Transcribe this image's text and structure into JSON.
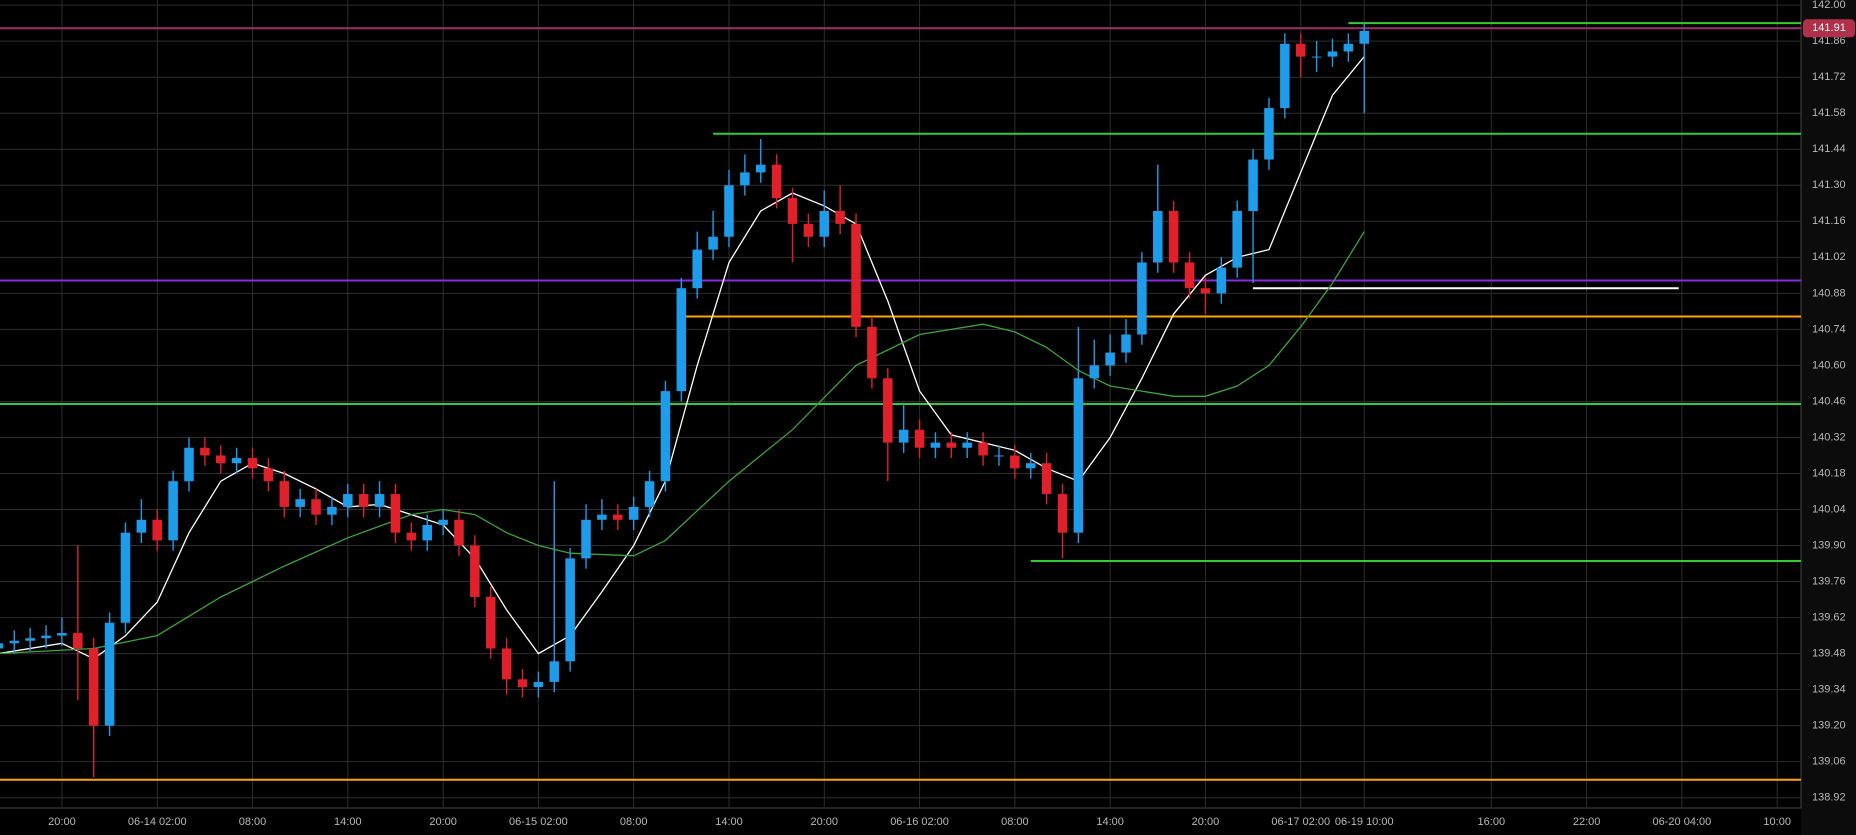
{
  "chart_data": {
    "type": "candlestick",
    "x": [
      -4,
      -3,
      -2,
      -1,
      0,
      1,
      2,
      3,
      4,
      5,
      6,
      7,
      8,
      9,
      10,
      11,
      12,
      13,
      14,
      15,
      16,
      17,
      18,
      19,
      20,
      21,
      22,
      23,
      24,
      25,
      26,
      27,
      28,
      29,
      30,
      31,
      32,
      33,
      34,
      35,
      36,
      37,
      38,
      39,
      40,
      41,
      42,
      43,
      44,
      45,
      46,
      47,
      48,
      49,
      50,
      51,
      52,
      53,
      54,
      55,
      56,
      57,
      58,
      59,
      60,
      61,
      62,
      63,
      64,
      65,
      66,
      67,
      68,
      69,
      70,
      71,
      72,
      73,
      74,
      75,
      76,
      77,
      78,
      79,
      80,
      81,
      82
    ],
    "open": [
      139.5,
      139.52,
      139.53,
      139.54,
      139.55,
      139.56,
      139.5,
      139.2,
      139.6,
      139.95,
      140.0,
      139.92,
      140.15,
      140.28,
      140.25,
      140.22,
      140.24,
      140.2,
      140.15,
      140.05,
      140.08,
      140.02,
      140.05,
      140.1,
      140.05,
      140.1,
      139.95,
      139.92,
      139.98,
      140.0,
      139.9,
      139.7,
      139.5,
      139.38,
      139.35,
      139.37,
      139.45,
      139.85,
      140.0,
      140.02,
      140.0,
      140.05,
      140.15,
      140.5,
      140.9,
      141.05,
      141.1,
      141.3,
      141.35,
      141.38,
      141.25,
      141.15,
      141.1,
      141.2,
      141.15,
      140.75,
      140.55,
      140.3,
      140.35,
      140.28,
      140.3,
      140.28,
      140.3,
      140.25,
      140.25,
      140.2,
      140.22,
      140.1,
      139.95,
      140.55,
      140.6,
      140.65,
      140.72,
      141.0,
      141.2,
      141.0,
      140.9,
      140.88,
      140.98,
      141.2,
      141.4,
      141.6,
      141.85,
      141.8,
      141.8,
      141.82,
      141.85
    ],
    "high": [
      139.56,
      139.57,
      139.58,
      139.59,
      139.62,
      139.9,
      139.54,
      139.64,
      139.99,
      140.08,
      140.04,
      140.19,
      140.32,
      140.32,
      140.29,
      140.28,
      140.28,
      140.24,
      140.19,
      140.12,
      140.12,
      140.09,
      140.14,
      140.14,
      140.15,
      140.14,
      139.99,
      140.02,
      140.04,
      140.04,
      139.94,
      139.74,
      139.54,
      139.42,
      139.41,
      140.15,
      139.89,
      140.06,
      140.08,
      140.06,
      140.09,
      140.19,
      140.54,
      140.94,
      141.12,
      141.2,
      141.36,
      141.42,
      141.48,
      141.42,
      141.29,
      141.19,
      141.28,
      141.3,
      141.19,
      140.79,
      140.59,
      140.45,
      140.39,
      140.34,
      140.34,
      140.34,
      140.34,
      140.29,
      140.29,
      140.26,
      140.26,
      140.14,
      140.75,
      140.7,
      140.72,
      140.78,
      141.04,
      141.38,
      141.24,
      141.04,
      140.94,
      141.02,
      141.24,
      141.44,
      141.64,
      141.89,
      141.89,
      141.86,
      141.87,
      141.89,
      141.93
    ],
    "low": [
      139.46,
      139.48,
      139.49,
      139.5,
      139.51,
      139.3,
      139.0,
      139.16,
      139.56,
      139.91,
      139.88,
      139.88,
      140.11,
      140.21,
      140.18,
      140.18,
      140.16,
      140.11,
      140.01,
      140.01,
      139.98,
      139.98,
      140.01,
      140.01,
      140.01,
      139.91,
      139.88,
      139.88,
      139.94,
      139.86,
      139.66,
      139.46,
      139.32,
      139.31,
      139.31,
      139.33,
      139.41,
      139.81,
      139.96,
      139.96,
      139.96,
      140.01,
      140.11,
      140.46,
      140.86,
      141.01,
      141.06,
      141.26,
      141.31,
      141.21,
      141.0,
      141.06,
      141.06,
      141.11,
      140.71,
      140.51,
      140.15,
      140.26,
      140.24,
      140.24,
      140.24,
      140.24,
      140.21,
      140.21,
      140.16,
      140.16,
      140.06,
      139.85,
      139.91,
      140.51,
      140.56,
      140.61,
      140.68,
      140.96,
      140.96,
      140.86,
      140.8,
      140.84,
      140.94,
      140.92,
      141.36,
      141.56,
      141.72,
      141.74,
      141.76,
      141.78,
      141.58
    ],
    "close": [
      139.52,
      139.53,
      139.54,
      139.55,
      139.56,
      139.5,
      139.2,
      139.6,
      139.95,
      140.0,
      139.92,
      140.15,
      140.28,
      140.25,
      140.22,
      140.24,
      140.2,
      140.15,
      140.05,
      140.08,
      140.02,
      140.05,
      140.1,
      140.05,
      140.1,
      139.95,
      139.92,
      139.98,
      140.0,
      139.9,
      139.7,
      139.5,
      139.38,
      139.35,
      139.37,
      139.45,
      139.85,
      140.0,
      140.02,
      140.0,
      140.05,
      140.15,
      140.5,
      140.9,
      141.05,
      141.1,
      141.3,
      141.35,
      141.38,
      141.25,
      141.15,
      141.1,
      141.2,
      141.15,
      140.75,
      140.55,
      140.3,
      140.35,
      140.28,
      140.3,
      140.28,
      140.3,
      140.25,
      140.25,
      140.2,
      140.22,
      140.1,
      139.95,
      140.55,
      140.6,
      140.65,
      140.72,
      141.0,
      141.2,
      141.0,
      140.9,
      140.88,
      140.98,
      141.2,
      141.4,
      141.6,
      141.85,
      141.8,
      141.8,
      141.82,
      141.85,
      141.9
    ],
    "up_color": "#1e9be9",
    "down_color": "#e0202a",
    "series": [
      {
        "color": "#ffffff",
        "x": [
          -4,
          0,
          2,
          4,
          6,
          8,
          10,
          12,
          14,
          16,
          18,
          20,
          22,
          24,
          26,
          28,
          30,
          32,
          34,
          36,
          38,
          40,
          42,
          44,
          46,
          48,
          50,
          52,
          54,
          56,
          58,
          60,
          62,
          64,
          66,
          68,
          70,
          72,
          74,
          76,
          78,
          80,
          82
        ],
        "values": [
          139.48,
          139.52,
          139.46,
          139.55,
          139.68,
          139.95,
          140.15,
          140.22,
          140.18,
          140.12,
          140.05,
          140.06,
          140.02,
          139.98,
          139.85,
          139.65,
          139.48,
          139.55,
          139.72,
          139.9,
          140.15,
          140.6,
          141.0,
          141.2,
          141.27,
          141.22,
          141.15,
          140.85,
          140.5,
          140.33,
          140.3,
          140.27,
          140.2,
          140.15,
          140.32,
          140.55,
          140.8,
          140.95,
          141.02,
          141.05,
          141.35,
          141.65,
          141.8
        ]
      },
      {
        "color": "#3aa53a",
        "x": [
          -4,
          2,
          6,
          10,
          14,
          18,
          22,
          24,
          26,
          28,
          30,
          32,
          36,
          38,
          42,
          46,
          50,
          54,
          58,
          60,
          62,
          64,
          66,
          70,
          72,
          74,
          76,
          78,
          80,
          82
        ],
        "values": [
          139.48,
          139.5,
          139.55,
          139.7,
          139.82,
          139.93,
          140.02,
          140.04,
          140.02,
          139.95,
          139.9,
          139.87,
          139.86,
          139.92,
          140.15,
          140.35,
          140.6,
          140.72,
          140.76,
          140.73,
          140.67,
          140.58,
          140.52,
          140.48,
          140.48,
          140.52,
          140.6,
          140.75,
          140.92,
          141.12
        ]
      }
    ],
    "levels": [
      {
        "value": 141.93,
        "color": "#33cc33",
        "start": 81
      },
      {
        "value": 141.91,
        "color": "#a0306a"
      },
      {
        "value": 141.5,
        "color": "#33cc33",
        "start": 41
      },
      {
        "value": 140.93,
        "color": "#8a2be2"
      },
      {
        "value": 140.9,
        "color": "#ffffff",
        "start": 75,
        "end": 101.8
      },
      {
        "value": 140.79,
        "color": "#ffa500",
        "start": 39
      },
      {
        "value": 140.45,
        "color": "#33cc33"
      },
      {
        "value": 139.84,
        "color": "#33cc33",
        "start": 61
      },
      {
        "value": 138.99,
        "color": "#ffa500"
      }
    ],
    "last_price": 141.91,
    "xlim": [
      -3.9,
      109.5
    ],
    "ylim": [
      138.88,
      142.02
    ],
    "xticks": [
      {
        "value": 0,
        "label": "20:00"
      },
      {
        "value": 6,
        "label": "06-14 02:00"
      },
      {
        "value": 12,
        "label": "08:00"
      },
      {
        "value": 18,
        "label": "14:00"
      },
      {
        "value": 24,
        "label": "20:00"
      },
      {
        "value": 30,
        "label": "06-15 02:00"
      },
      {
        "value": 36,
        "label": "08:00"
      },
      {
        "value": 42,
        "label": "14:00"
      },
      {
        "value": 48,
        "label": "20:00"
      },
      {
        "value": 54,
        "label": "06-16 02:00"
      },
      {
        "value": 60,
        "label": "08:00"
      },
      {
        "value": 66,
        "label": "14:00"
      },
      {
        "value": 72,
        "label": "20:00"
      },
      {
        "value": 78,
        "label": "06-17 02:00"
      },
      {
        "value": 82,
        "label": "06-19 10:00"
      },
      {
        "value": 90,
        "label": "16:00"
      },
      {
        "value": 96,
        "label": "22:00"
      },
      {
        "value": 102,
        "label": "06-20 04:00"
      },
      {
        "value": 108,
        "label": "10:00"
      }
    ],
    "yticks": [
      {
        "value": 142,
        "label": "142.00"
      },
      {
        "value": 141.86,
        "label": "141.86"
      },
      {
        "value": 141.72,
        "label": "141.72"
      },
      {
        "value": 141.58,
        "label": "141.58"
      },
      {
        "value": 141.44,
        "label": "141.44"
      },
      {
        "value": 141.3,
        "label": "141.30"
      },
      {
        "value": 141.16,
        "label": "141.16"
      },
      {
        "value": 141.02,
        "label": "141.02"
      },
      {
        "value": 140.88,
        "label": "140.88"
      },
      {
        "value": 140.74,
        "label": "140.74"
      },
      {
        "value": 140.6,
        "label": "140.60"
      },
      {
        "value": 140.46,
        "label": "140.46"
      },
      {
        "value": 140.32,
        "label": "140.32"
      },
      {
        "value": 140.18,
        "label": "140.18"
      },
      {
        "value": 140.04,
        "label": "140.04"
      },
      {
        "value": 139.9,
        "label": "139.90"
      },
      {
        "value": 139.76,
        "label": "139.76"
      },
      {
        "value": 139.62,
        "label": "139.62"
      },
      {
        "value": 139.48,
        "label": "139.48"
      },
      {
        "value": 139.34,
        "label": "139.34"
      },
      {
        "value": 139.2,
        "label": "139.20"
      },
      {
        "value": 139.06,
        "label": "139.06"
      },
      {
        "value": 138.92,
        "label": "138.92"
      }
    ],
    "grid": true
  }
}
